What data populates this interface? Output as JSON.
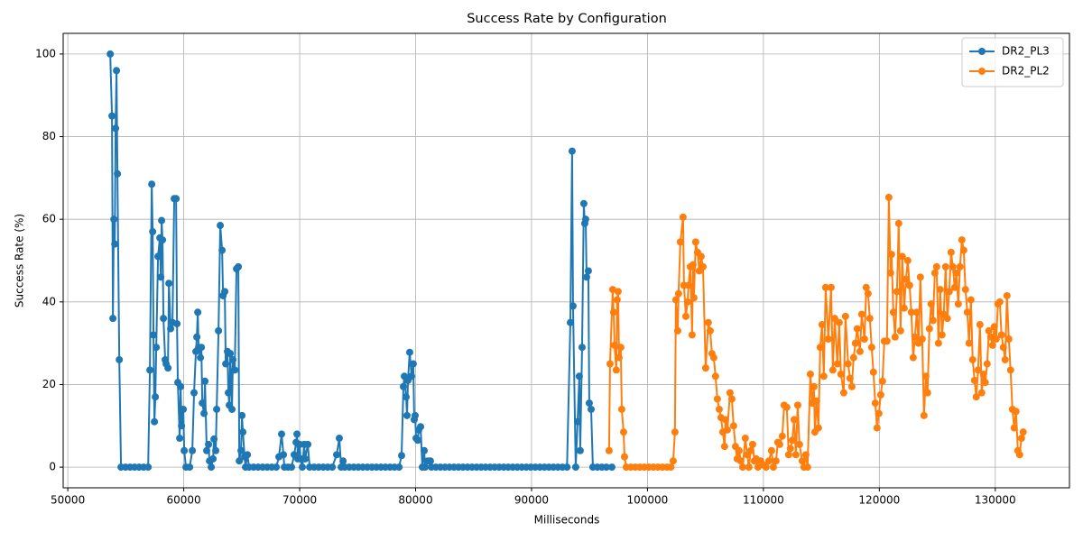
{
  "chart_data": {
    "type": "line",
    "title": "Success Rate by Configuration",
    "xlabel": "Milliseconds",
    "ylabel": "Success Rate (%)",
    "xlim": [
      49600,
      136400
    ],
    "ylim": [
      -5,
      105
    ],
    "xticks": [
      50000,
      60000,
      70000,
      80000,
      90000,
      100000,
      110000,
      120000,
      130000
    ],
    "yticks": [
      0,
      20,
      40,
      60,
      80,
      100
    ],
    "grid": true,
    "legend": "upper right",
    "series": [
      {
        "name": "DR2_PL3",
        "color": "#1f77b4",
        "x": [
          53660,
          53810,
          53890,
          53970,
          54050,
          54120,
          54200,
          54280,
          54440,
          54590,
          54980,
          55370,
          55760,
          56150,
          56540,
          56930,
          57080,
          57240,
          57320,
          57390,
          57470,
          57550,
          57630,
          57780,
          57940,
          58020,
          58090,
          58170,
          58250,
          58400,
          58480,
          58640,
          58720,
          58870,
          59030,
          59180,
          59340,
          59420,
          59490,
          59650,
          59730,
          59810,
          59960,
          60040,
          60190,
          60510,
          60740,
          60890,
          61050,
          61130,
          61210,
          61280,
          61440,
          61520,
          61600,
          61750,
          61830,
          61980,
          62140,
          62220,
          62370,
          62530,
          62610,
          62760,
          62840,
          63000,
          63150,
          63310,
          63390,
          63540,
          63620,
          63770,
          63850,
          63930,
          64010,
          64160,
          64240,
          64400,
          64550,
          64710,
          64790,
          64940,
          65020,
          65100,
          65250,
          65330,
          65490,
          65640,
          66030,
          66420,
          66810,
          67200,
          67590,
          67980,
          68210,
          68440,
          68600,
          68680,
          68990,
          69300,
          69530,
          69690,
          69770,
          69840,
          70000,
          70080,
          70230,
          70390,
          70470,
          70700,
          70860,
          71250,
          71640,
          72030,
          72420,
          72810,
          73190,
          73420,
          73580,
          73740,
          73890,
          74280,
          74670,
          75060,
          75450,
          75840,
          76230,
          76620,
          77010,
          77400,
          77790,
          78180,
          78570,
          78790,
          78950,
          79030,
          79180,
          79260,
          79340,
          79490,
          79650,
          79800,
          79880,
          79960,
          80040,
          80190,
          80270,
          80430,
          80580,
          80740,
          80820,
          81050,
          81280,
          81360,
          81750,
          82140,
          82530,
          82920,
          83310,
          83700,
          84090,
          84480,
          84870,
          85260,
          85650,
          86040,
          86430,
          86820,
          87210,
          87600,
          87990,
          88380,
          88770,
          89160,
          89550,
          89940,
          90330,
          90720,
          91110,
          91500,
          91890,
          92280,
          92670,
          93060,
          93350,
          93500,
          93580,
          93810,
          93970,
          94120,
          94200,
          94360,
          94510,
          94590,
          94670,
          94750,
          94900,
          94980,
          95140,
          95290,
          95680,
          96070,
          96460,
          96930
        ],
        "values": [
          100,
          85,
          36,
          60,
          54,
          82,
          96,
          71,
          26,
          0,
          0,
          0,
          0,
          0,
          0,
          0,
          23.5,
          68.5,
          57,
          32,
          11,
          17,
          29,
          51,
          55.5,
          46,
          59.7,
          55,
          36,
          26,
          25,
          24,
          44.5,
          33.5,
          35,
          65,
          65,
          34.7,
          20.5,
          7,
          19.5,
          10,
          14,
          4,
          0,
          0,
          4,
          18,
          28,
          31.5,
          37.5,
          29,
          26.5,
          29,
          15.5,
          13,
          20.8,
          4,
          5.5,
          1.5,
          0,
          2,
          6.8,
          4,
          14,
          33,
          58.5,
          52.5,
          41.5,
          42.5,
          25,
          28,
          18,
          15,
          27.5,
          14,
          26,
          23.5,
          48,
          48.5,
          1.5,
          4,
          12.5,
          8.5,
          2.5,
          0,
          3,
          0,
          0,
          0,
          0,
          0,
          0,
          0,
          2.5,
          8,
          3,
          0,
          0,
          0,
          3,
          6,
          8,
          2,
          5.5,
          2,
          0,
          5.5,
          2,
          5.5,
          0,
          0,
          0,
          0,
          0,
          0,
          3,
          7,
          0,
          1.5,
          0,
          0,
          0,
          0,
          0,
          0,
          0,
          0,
          0,
          0,
          0,
          0,
          0,
          2.8,
          19.5,
          22,
          17,
          12.5,
          21,
          27.8,
          22,
          25,
          11.5,
          12.5,
          7,
          6.5,
          9,
          9.8,
          0,
          4,
          0,
          1.5,
          1.5,
          0,
          0,
          0,
          0,
          0,
          0,
          0,
          0,
          0,
          0,
          0,
          0,
          0,
          0,
          0,
          0,
          0,
          0,
          0,
          0,
          0,
          0,
          0,
          0,
          0,
          0,
          0,
          0,
          0,
          0,
          0,
          35,
          76.5,
          39,
          0,
          11,
          22,
          4,
          29,
          63.8,
          59,
          60,
          46,
          47.5,
          15.5,
          14,
          0,
          0,
          0,
          0,
          0
        ]
      },
      {
        "name": "DR2_PL2",
        "color": "#ff7f0e",
        "x": [
          96690,
          96770,
          97000,
          97080,
          97160,
          97310,
          97390,
          97470,
          97550,
          97700,
          97780,
          97940,
          98020,
          98170,
          98560,
          98950,
          99340,
          99730,
          100120,
          100510,
          100900,
          101290,
          101680,
          102020,
          102220,
          102370,
          102450,
          102610,
          102680,
          102840,
          103070,
          103150,
          103310,
          103460,
          103540,
          103700,
          103850,
          103930,
          104010,
          104160,
          104320,
          104470,
          104630,
          104790,
          105020,
          105250,
          105410,
          105560,
          105720,
          105870,
          106030,
          106190,
          106340,
          106500,
          106650,
          106730,
          106890,
          107120,
          107280,
          107430,
          107590,
          107740,
          107900,
          108050,
          108210,
          108440,
          108600,
          108750,
          108910,
          109070,
          109220,
          109380,
          109530,
          109770,
          110000,
          110230,
          110470,
          110700,
          110860,
          111090,
          111240,
          111400,
          111630,
          111790,
          112020,
          112180,
          112330,
          112490,
          112650,
          112800,
          112960,
          113110,
          113350,
          113500,
          113660,
          113810,
          114050,
          114200,
          114360,
          114440,
          114590,
          114750,
          114900,
          115060,
          115210,
          115370,
          115600,
          115840,
          115990,
          116150,
          116380,
          116540,
          116690,
          116930,
          117080,
          117310,
          117470,
          117630,
          117780,
          117940,
          118090,
          118330,
          118480,
          118720,
          118870,
          119030,
          119180,
          119340,
          119490,
          119650,
          119800,
          119960,
          120120,
          120270,
          120430,
          120660,
          120820,
          120970,
          121050,
          121210,
          121360,
          121520,
          121670,
          121830,
          121980,
          122140,
          122300,
          122450,
          122610,
          122760,
          122920,
          123070,
          123230,
          123380,
          123540,
          123700,
          123850,
          124010,
          124160,
          124320,
          124470,
          124630,
          124790,
          124940,
          125100,
          125250,
          125410,
          125560,
          125720,
          125870,
          126030,
          126190,
          126340,
          126500,
          126650,
          126810,
          126960,
          127120,
          127280,
          127430,
          127590,
          127740,
          127900,
          128050,
          128210,
          128360,
          128520,
          128680,
          128830,
          128990,
          129140,
          129300,
          129450,
          129610,
          129770,
          129920,
          130080,
          130230,
          130390,
          130540,
          130700,
          130850,
          131010,
          131170,
          131320,
          131480,
          131630,
          131790,
          131950,
          132100,
          132260,
          132410
        ],
        "values": [
          4,
          25,
          43,
          37.5,
          29.5,
          23.5,
          40.5,
          42.5,
          26.5,
          29,
          14,
          8.5,
          2.5,
          0,
          0,
          0,
          0,
          0,
          0,
          0,
          0,
          0,
          0,
          0,
          1.5,
          8.5,
          40.5,
          33,
          42,
          54.5,
          60.5,
          44,
          36.5,
          40,
          44,
          48.5,
          32,
          49,
          41,
          54.5,
          52,
          47.5,
          51,
          48.5,
          24,
          35,
          33,
          27.5,
          26.5,
          22,
          16.5,
          14,
          12,
          8.5,
          5,
          11.5,
          9,
          18,
          16.5,
          10,
          5,
          2,
          4,
          1.5,
          0,
          7,
          3,
          0,
          4,
          5.5,
          1.5,
          2,
          0,
          1.5,
          0.5,
          0,
          1.5,
          4,
          0,
          1.5,
          6,
          5.5,
          7.5,
          15,
          14.5,
          3,
          4.5,
          6.5,
          11.5,
          3,
          15,
          5.5,
          1.5,
          0,
          3,
          0,
          22.5,
          15.5,
          19.5,
          8.5,
          16,
          9.5,
          29,
          34.5,
          22,
          43.5,
          31,
          43.5,
          23.5,
          36,
          25,
          35,
          22.5,
          18,
          36.5,
          25,
          21.5,
          19.5,
          26.5,
          30,
          33.5,
          28,
          37,
          31,
          43.5,
          42,
          36,
          29,
          23,
          15.5,
          9.5,
          13,
          17.5,
          20.8,
          30.5,
          30.5,
          65.3,
          47,
          51.5,
          37.5,
          31.5,
          42.5,
          59,
          33,
          51,
          38.5,
          45.5,
          50,
          44,
          37.5,
          26.5,
          31.5,
          37.5,
          30,
          46,
          31,
          12.5,
          22,
          18,
          33.5,
          39.5,
          35.5,
          47,
          48.5,
          30,
          43,
          32,
          37,
          48.5,
          36,
          42.5,
          52,
          48.5,
          43.5,
          47,
          39.5,
          48.5,
          55,
          52.5,
          43,
          37.5,
          30,
          40.5,
          26,
          21,
          17,
          23.5,
          34.5,
          18,
          22.5,
          20.5,
          25,
          33,
          31.5,
          29.5,
          34,
          31,
          39.5,
          40,
          32,
          29,
          26,
          41.5,
          31,
          23.5,
          14,
          9.5,
          13.5,
          4,
          3,
          7,
          8.5
        ]
      }
    ]
  }
}
